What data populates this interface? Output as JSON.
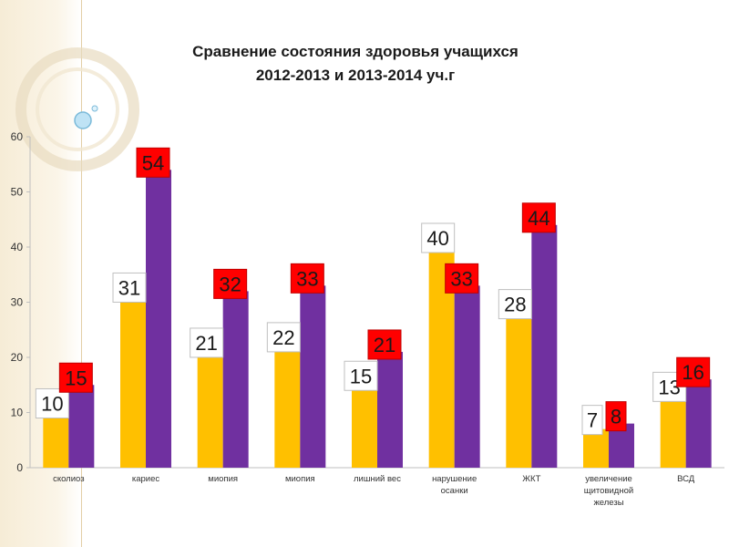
{
  "title": {
    "line1": "Сравнение состояния здоровья учащихся",
    "line2": "2012-2013 и 2013-2014 уч.г"
  },
  "colors": {
    "series1": "#ffc000",
    "series2": "#7030a0",
    "label1_bg": "#ffffff",
    "label2_bg": "#ff0000",
    "decor": "#f6ecd6"
  },
  "chart_data": {
    "type": "bar",
    "title": "Сравнение состояния здоровья учащихся 2012-2013 и 2013-2014 уч.г",
    "categories": [
      [
        "сколиоз"
      ],
      [
        "кариес"
      ],
      [
        "миопия"
      ],
      [
        "миопия"
      ],
      [
        "лишний вес"
      ],
      [
        "нарушение",
        "осанки"
      ],
      [
        "ЖКТ"
      ],
      [
        "увеличение",
        "щитовидной",
        "железы"
      ],
      [
        "ВСД"
      ]
    ],
    "series": [
      {
        "values": [
          10,
          31,
          21,
          22,
          15,
          40,
          28,
          7,
          13
        ]
      },
      {
        "values": [
          15,
          54,
          32,
          33,
          21,
          33,
          44,
          8,
          16
        ]
      }
    ],
    "ylim": [
      0,
      60
    ],
    "yticks": [
      0,
      10,
      20,
      30,
      40,
      50,
      60
    ],
    "grid": false,
    "legend": "none"
  }
}
